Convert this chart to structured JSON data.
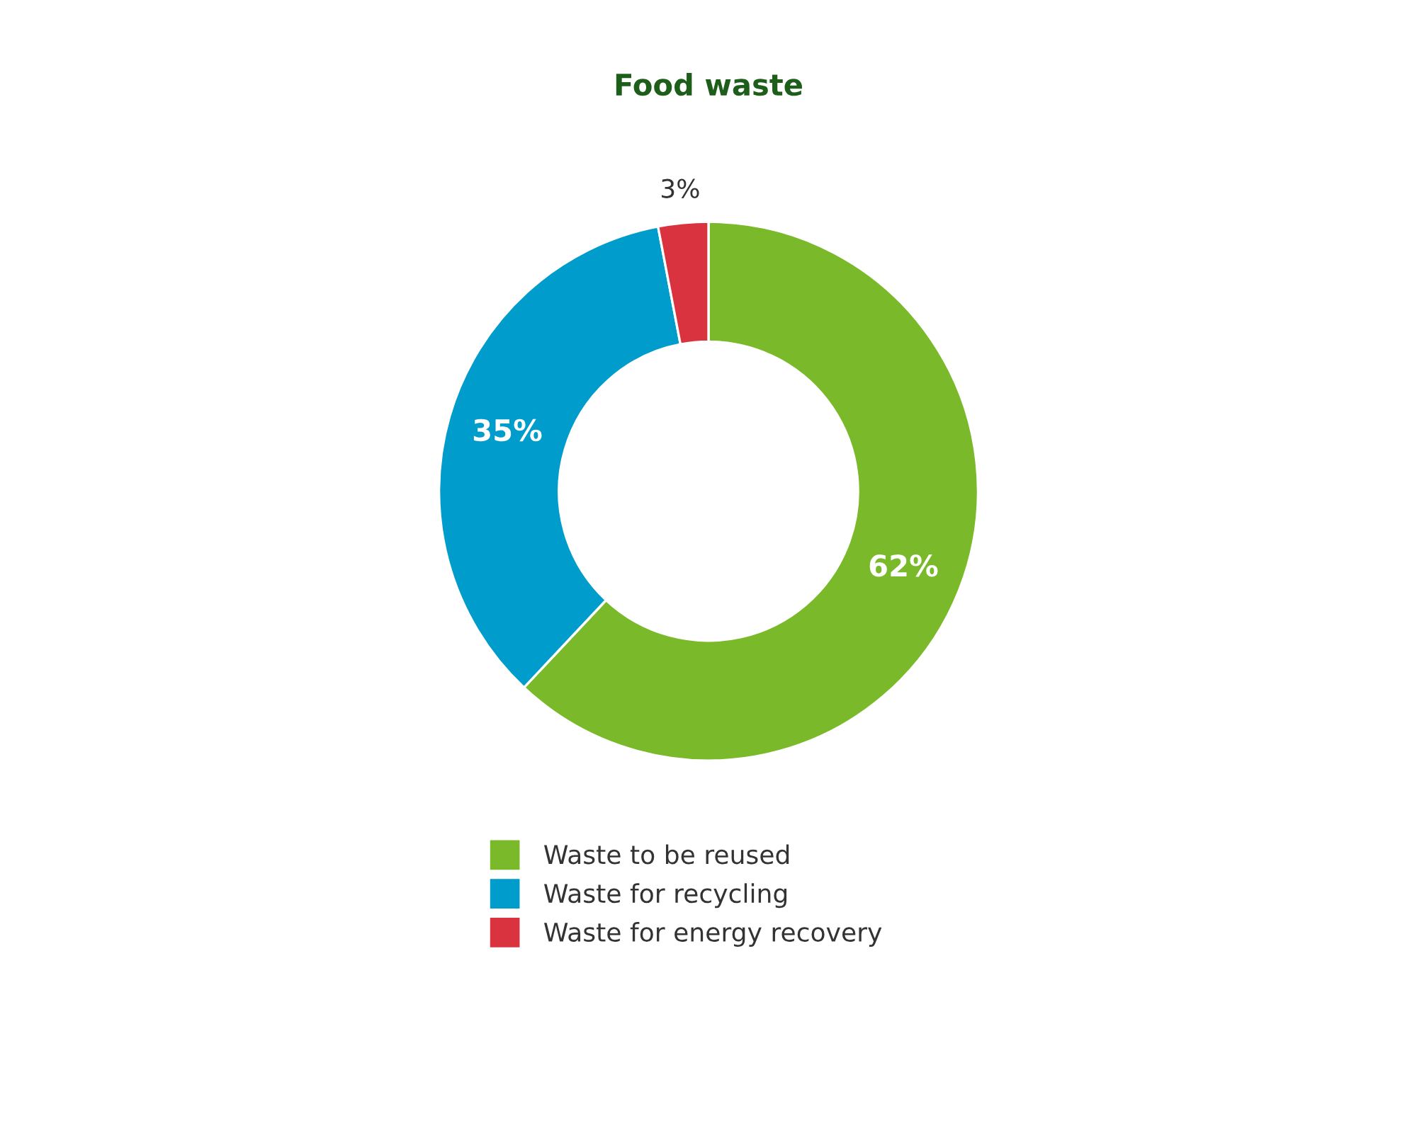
{
  "chart_data": {
    "type": "donut",
    "title": "Food waste",
    "categories": [
      "Waste to be reused",
      "Waste for recycling",
      "Waste for energy recovery"
    ],
    "values": [
      62,
      35,
      3
    ],
    "colors": [
      "#7ab929",
      "#009dcc",
      "#d9333f"
    ],
    "value_labels": [
      "62%",
      "35%",
      "3%"
    ],
    "legend": "bottom"
  }
}
